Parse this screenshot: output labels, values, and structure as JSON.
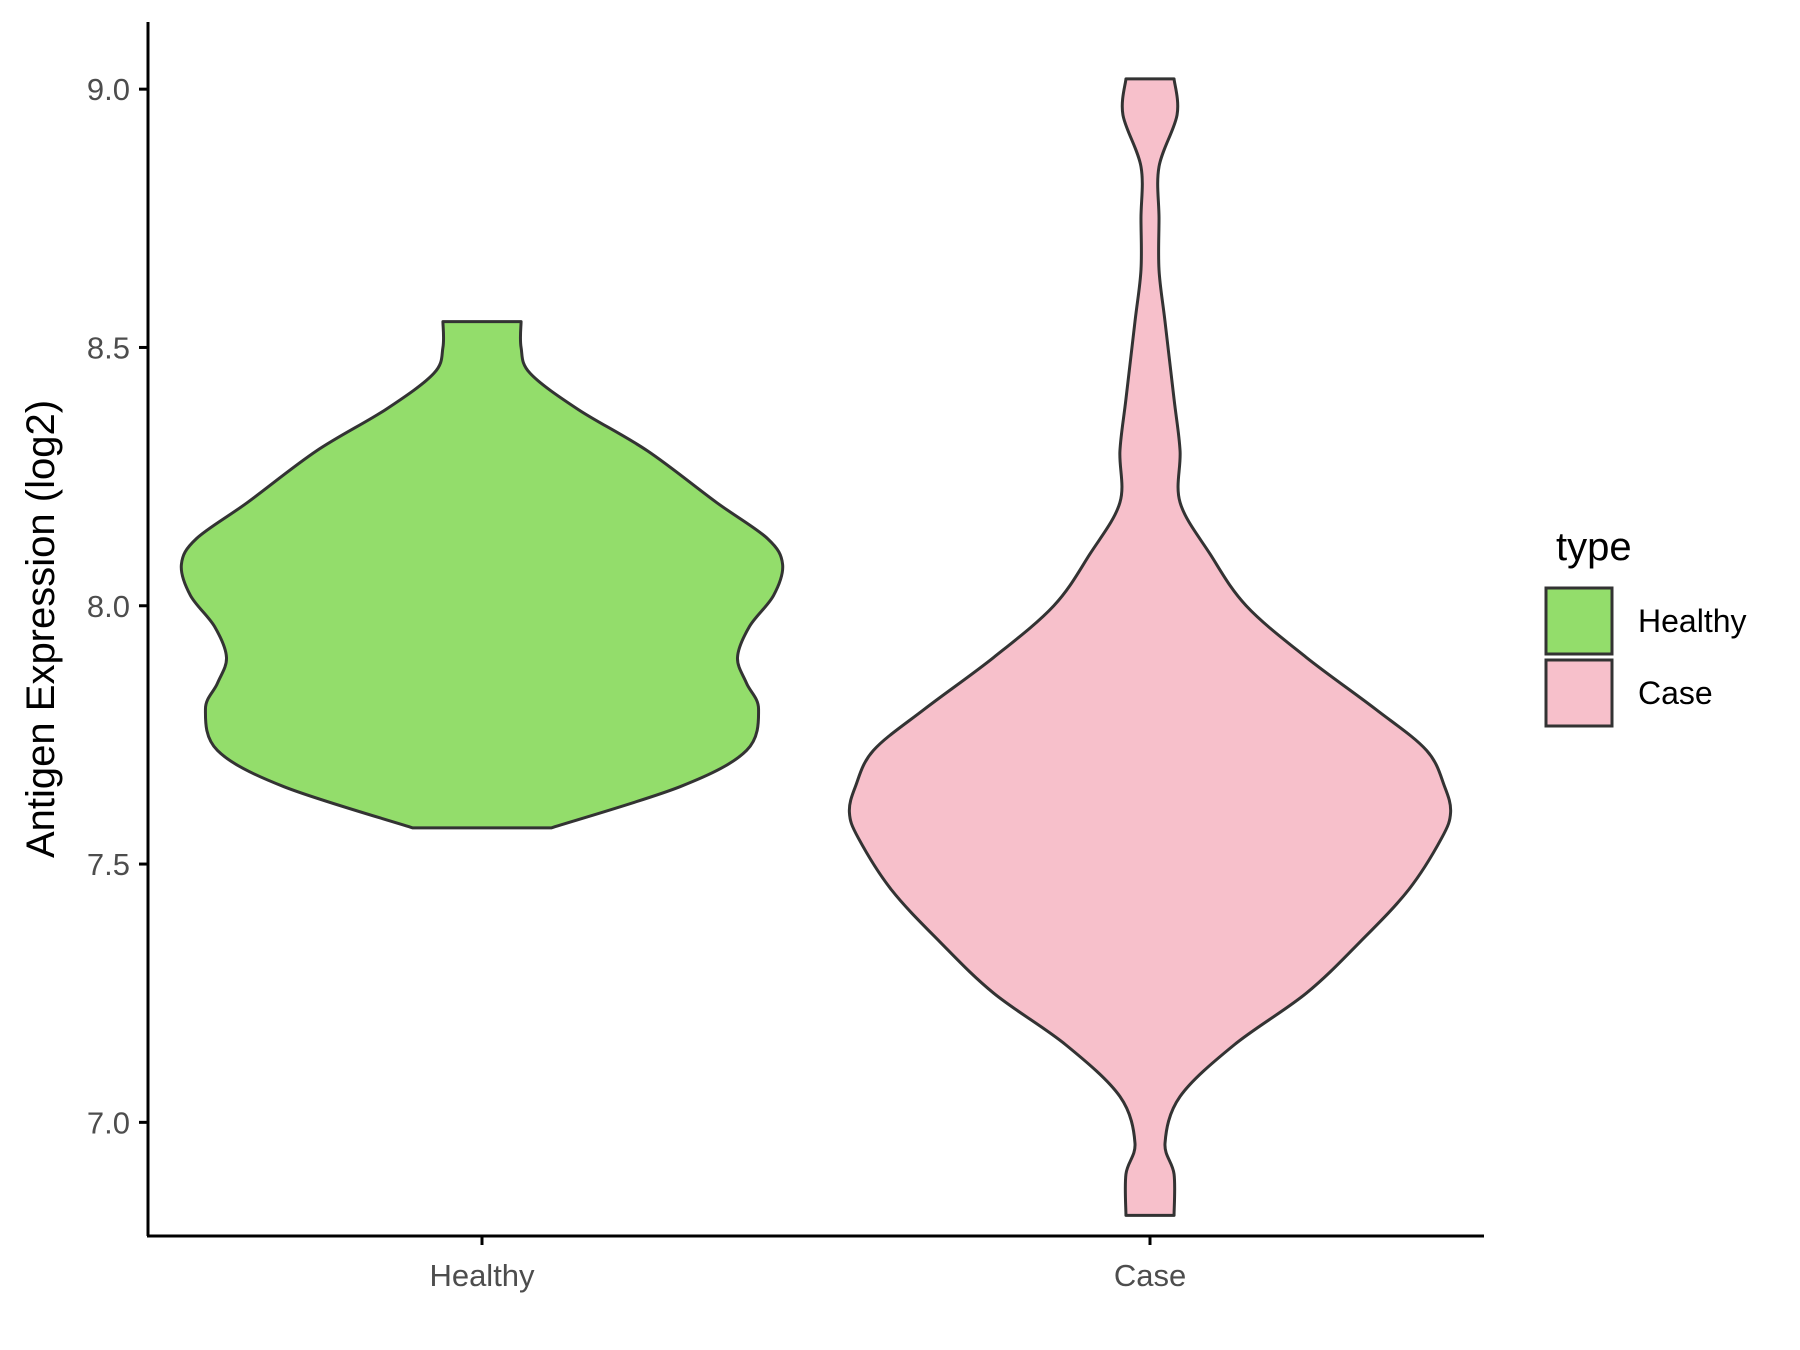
{
  "chart_data": {
    "type": "violin",
    "title": "",
    "xlabel": "",
    "ylabel": "Antigen Expression (log2)",
    "ylim": [
      6.78,
      9.13
    ],
    "yticks": [
      7.0,
      7.5,
      8.0,
      8.5,
      9.0
    ],
    "ytick_labels": [
      "7.0",
      "7.5",
      "8.0",
      "8.5",
      "9.0"
    ],
    "categories": [
      "Healthy",
      "Case"
    ],
    "grid": false,
    "legend": {
      "title": "type",
      "position": "right",
      "entries": [
        "Healthy",
        "Case"
      ]
    },
    "series": [
      {
        "name": "Healthy",
        "color": "#93DD6B",
        "min": 7.57,
        "max": 8.55,
        "density_profile": [
          [
            7.57,
            0.23
          ],
          [
            7.65,
            0.66
          ],
          [
            7.72,
            0.88
          ],
          [
            7.8,
            0.92
          ],
          [
            7.85,
            0.88
          ],
          [
            7.9,
            0.85
          ],
          [
            7.96,
            0.89
          ],
          [
            8.02,
            0.97
          ],
          [
            8.08,
            1.0
          ],
          [
            8.13,
            0.95
          ],
          [
            8.2,
            0.78
          ],
          [
            8.3,
            0.55
          ],
          [
            8.38,
            0.32
          ],
          [
            8.45,
            0.16
          ],
          [
            8.5,
            0.13
          ],
          [
            8.55,
            0.13
          ]
        ]
      },
      {
        "name": "Case",
        "color": "#F7C0CB",
        "min": 6.82,
        "max": 9.02,
        "density_profile": [
          [
            6.82,
            0.08
          ],
          [
            6.9,
            0.08
          ],
          [
            6.96,
            0.05
          ],
          [
            7.05,
            0.1
          ],
          [
            7.15,
            0.28
          ],
          [
            7.25,
            0.52
          ],
          [
            7.35,
            0.7
          ],
          [
            7.45,
            0.86
          ],
          [
            7.55,
            0.97
          ],
          [
            7.6,
            1.0
          ],
          [
            7.65,
            0.98
          ],
          [
            7.72,
            0.92
          ],
          [
            7.8,
            0.75
          ],
          [
            7.9,
            0.52
          ],
          [
            8.0,
            0.32
          ],
          [
            8.1,
            0.2
          ],
          [
            8.2,
            0.1
          ],
          [
            8.3,
            0.1
          ],
          [
            8.4,
            0.08
          ],
          [
            8.55,
            0.05
          ],
          [
            8.65,
            0.03
          ],
          [
            8.75,
            0.03
          ],
          [
            8.85,
            0.03
          ],
          [
            8.95,
            0.09
          ],
          [
            9.02,
            0.08
          ]
        ]
      }
    ]
  }
}
